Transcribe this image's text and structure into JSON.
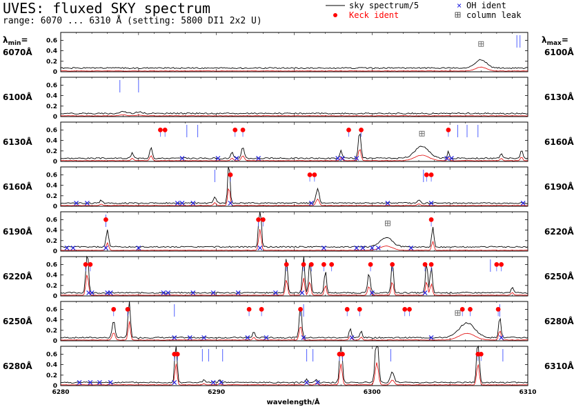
{
  "header": {
    "title": "UVES: fluxed SKY spectrum",
    "subtitle": "range: 6070 ... 6310 Å (setting: 5800 DI1 2x2 U)"
  },
  "legend": {
    "sky": "sky spectrum/5",
    "keck": "Keck ident",
    "oh": "OH ident",
    "leak": "column leak"
  },
  "labels": {
    "lmin": "min",
    "lmax": "max",
    "lambda": "λ",
    "xlabel": "wavelength/Å"
  },
  "colors": {
    "sky": "#000000",
    "spectrum": "#e00000",
    "keck": "#ff0000",
    "oh": "#2020e0",
    "ticks": "#5060ff",
    "leak": "#555555"
  },
  "panels": [
    {
      "left": "6070Å",
      "right": "6100Å"
    },
    {
      "left": "6100Å",
      "right": "6130Å"
    },
    {
      "left": "6130Å",
      "right": "6160Å"
    },
    {
      "left": "6160Å",
      "right": "6190Å"
    },
    {
      "left": "6190Å",
      "right": "6220Å"
    },
    {
      "left": "6220Å",
      "right": "6250Å"
    },
    {
      "left": "6250Å",
      "right": "6280Å"
    },
    {
      "left": "6280Å",
      "right": "6310Å"
    }
  ],
  "chart_data": {
    "type": "line",
    "panel_width_A": 30,
    "ylim": [
      0,
      0.75
    ],
    "yticks": [
      0,
      0.2,
      0.4,
      0.6
    ],
    "ytick_labels": [
      "0",
      "0.2",
      "0.4",
      "0.6"
    ],
    "last_panel_xticks": [
      6280,
      6290,
      6300,
      6310
    ],
    "last_panel_xtick_labels": [
      "6280",
      "6290",
      "6300",
      "6310"
    ],
    "panels": [
      {
        "start": 6070,
        "end": 6100,
        "baseline": 0.07,
        "seed": 1,
        "lines": [
          {
            "w": 6097.0,
            "a": 0.16,
            "s": 0.35
          }
        ],
        "blue_ticks": [
          6099.3,
          6099.5
        ],
        "keck": [],
        "oh": [],
        "leak": [
          6097.0
        ]
      },
      {
        "start": 6100,
        "end": 6130,
        "baseline": 0.06,
        "seed": 2,
        "lines": [
          {
            "w": 6104.0,
            "a": 0.04,
            "s": 0.2
          },
          {
            "w": 6105.0,
            "a": 0.03,
            "s": 0.2
          }
        ],
        "blue_ticks": [
          6103.8,
          6105.0
        ],
        "keck": [],
        "oh": [],
        "leak": []
      },
      {
        "start": 6130,
        "end": 6160,
        "baseline": 0.06,
        "seed": 3,
        "lines": [
          {
            "w": 6134.6,
            "a": 0.1,
            "s": 0.08
          },
          {
            "w": 6135.8,
            "a": 0.22,
            "s": 0.08
          },
          {
            "w": 6141.0,
            "a": 0.12,
            "s": 0.07
          },
          {
            "w": 6141.7,
            "a": 0.22,
            "s": 0.09
          },
          {
            "w": 6148.0,
            "a": 0.14,
            "s": 0.07
          },
          {
            "w": 6149.2,
            "a": 0.52,
            "s": 0.08
          },
          {
            "w": 6153.2,
            "a": 0.23,
            "s": 0.45
          },
          {
            "w": 6154.9,
            "a": 0.15,
            "s": 0.06
          },
          {
            "w": 6158.3,
            "a": 0.1,
            "s": 0.07
          },
          {
            "w": 6159.6,
            "a": 0.16,
            "s": 0.07
          }
        ],
        "blue_ticks": [
          6138.1,
          6138.8,
          6155.5,
          6156.1,
          6156.8
        ],
        "keck": [
          6136.4,
          6136.7,
          6141.2,
          6141.7,
          6148.5,
          6149.3,
          6154.9
        ],
        "oh": [
          6137.8,
          6140.1,
          6141.3,
          6142.7,
          6147.8,
          6148.1,
          6149.0,
          6154.8,
          6155.1
        ],
        "leak": [
          6153.2
        ]
      },
      {
        "start": 6160,
        "end": 6190,
        "baseline": 0.06,
        "seed": 4,
        "lines": [
          {
            "w": 6162.6,
            "a": 0.06,
            "s": 0.08
          },
          {
            "w": 6169.9,
            "a": 0.12,
            "s": 0.08
          },
          {
            "w": 6170.8,
            "a": 0.8,
            "s": 0.07
          },
          {
            "w": 6176.5,
            "a": 0.28,
            "s": 0.1
          },
          {
            "w": 6183.0,
            "a": 0.07,
            "s": 0.08
          }
        ],
        "blue_ticks": [
          6169.9,
          6183.3
        ],
        "keck": [
          6170.9,
          6176.0,
          6176.3,
          6183.5,
          6183.8
        ],
        "oh": [
          6161.0,
          6161.7,
          6167.5,
          6167.8,
          6168.5,
          6170.9,
          6176.1,
          6181.0,
          6183.8,
          6189.7
        ],
        "leak": []
      },
      {
        "start": 6190,
        "end": 6220,
        "baseline": 0.08,
        "seed": 5,
        "lines": [
          {
            "w": 6193.0,
            "a": 0.32,
            "s": 0.08
          },
          {
            "w": 6202.8,
            "a": 0.9,
            "s": 0.08
          },
          {
            "w": 6210.9,
            "a": 0.18,
            "s": 0.4
          },
          {
            "w": 6213.9,
            "a": 0.38,
            "s": 0.07
          }
        ],
        "blue_ticks": [
          6192.9
        ],
        "keck": [
          6192.9,
          6202.7,
          6203.0,
          6213.8
        ],
        "oh": [
          6190.4,
          6190.8,
          6192.9,
          6195.0,
          6202.8,
          6206.9,
          6209.0,
          6209.4,
          6210.0,
          6210.4,
          6212.5
        ],
        "leak": [
          6211.0
        ]
      },
      {
        "start": 6220,
        "end": 6250,
        "baseline": 0.06,
        "seed": 6,
        "lines": [
          {
            "w": 6221.7,
            "a": 0.9,
            "s": 0.08
          },
          {
            "w": 6234.5,
            "a": 0.7,
            "s": 0.07
          },
          {
            "w": 6235.6,
            "a": 0.75,
            "s": 0.07
          },
          {
            "w": 6236.0,
            "a": 0.6,
            "s": 0.07
          },
          {
            "w": 6237.0,
            "a": 0.42,
            "s": 0.07
          },
          {
            "w": 6239.8,
            "a": 0.38,
            "s": 0.08
          },
          {
            "w": 6241.3,
            "a": 0.6,
            "s": 0.07
          },
          {
            "w": 6243.5,
            "a": 0.6,
            "s": 0.07
          },
          {
            "w": 6243.8,
            "a": 0.5,
            "s": 0.07
          },
          {
            "w": 6249.0,
            "a": 0.12,
            "s": 0.07
          }
        ],
        "blue_ticks": [
          6247.6
        ],
        "keck": [
          6221.6,
          6221.9,
          6234.5,
          6235.6,
          6236.1,
          6236.9,
          6237.4,
          6239.9,
          6241.3,
          6243.4,
          6243.8,
          6248.0,
          6248.3
        ],
        "oh": [
          6221.8,
          6222.0,
          6223.0,
          6223.2,
          6226.6,
          6226.9,
          6228.5,
          6229.8,
          6231.4,
          6233.8,
          6235.5,
          6240.0,
          6243.4
        ],
        "leak": []
      },
      {
        "start": 6250,
        "end": 6280,
        "baseline": 0.06,
        "seed": 7,
        "lines": [
          {
            "w": 6253.4,
            "a": 0.32,
            "s": 0.09
          },
          {
            "w": 6254.4,
            "a": 0.8,
            "s": 0.07
          },
          {
            "w": 6262.4,
            "a": 0.12,
            "s": 0.07
          },
          {
            "w": 6265.4,
            "a": 0.62,
            "s": 0.08
          },
          {
            "w": 6268.6,
            "a": 0.18,
            "s": 0.07
          },
          {
            "w": 6269.3,
            "a": 0.13,
            "s": 0.07
          },
          {
            "w": 6276.1,
            "a": 0.28,
            "s": 0.5
          },
          {
            "w": 6278.2,
            "a": 0.42,
            "s": 0.07
          }
        ],
        "blue_ticks": [
          6257.3,
          6265.6,
          6278.2
        ],
        "keck": [
          6253.4,
          6254.3,
          6262.1,
          6262.9,
          6265.4,
          6268.4,
          6269.2,
          6272.1,
          6272.4,
          6275.8,
          6276.3,
          6278.1
        ],
        "oh": [
          6257.3,
          6258.3,
          6259.2,
          6262.0,
          6263.2,
          6265.6,
          6268.7,
          6273.8,
          6278.3
        ],
        "leak": [
          6275.5
        ]
      },
      {
        "start": 6280,
        "end": 6310,
        "baseline": 0.06,
        "seed": 8,
        "lines": [
          {
            "w": 6287.4,
            "a": 0.9,
            "s": 0.07
          },
          {
            "w": 6289.2,
            "a": 0.05,
            "s": 0.07
          },
          {
            "w": 6290.2,
            "a": 0.05,
            "s": 0.07
          },
          {
            "w": 6295.8,
            "a": 0.07,
            "s": 0.07
          },
          {
            "w": 6296.4,
            "a": 0.07,
            "s": 0.07
          },
          {
            "w": 6298.0,
            "a": 0.9,
            "s": 0.08
          },
          {
            "w": 6300.3,
            "a": 0.95,
            "s": 0.1
          },
          {
            "w": 6301.3,
            "a": 0.2,
            "s": 0.12
          },
          {
            "w": 6306.8,
            "a": 0.9,
            "s": 0.08
          }
        ],
        "blue_ticks": [
          6289.1,
          6289.5,
          6290.4,
          6295.8,
          6296.2,
          6301.2,
          6308.4
        ],
        "keck": [
          6287.3,
          6287.5,
          6297.9,
          6298.1,
          6306.8,
          6307.0
        ],
        "oh": [
          6281.2,
          6281.9,
          6282.5,
          6283.2,
          6287.3,
          6289.8,
          6290.3,
          6295.8,
          6296.5
        ],
        "leak": []
      }
    ]
  }
}
